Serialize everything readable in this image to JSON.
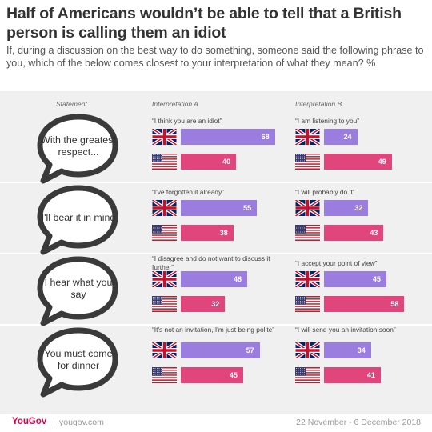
{
  "title": "Half of Americans wouldn’t be able to tell that a British person is calling them an idiot",
  "subtitle": "If, during a discussion on the best way to do something, someone said the following phrase to you, which of the below comes closest to your interpretation of what they mean? %",
  "column_headers": {
    "statement": "Statement",
    "interp_a": "Interpretation A",
    "interp_b": "Interpretation B"
  },
  "colors": {
    "uk": "#9b7ddf",
    "us": "#e0457b",
    "panel": "#f0f0f0",
    "brand": "#e4004b"
  },
  "chart_data": {
    "type": "bar",
    "title": "Half of Americans wouldn’t be able to tell that a British person is calling them an idiot",
    "subtitle": "If, during a discussion on the best way to do something, someone said the following phrase to you, which of the below comes closest to your interpretation of what they mean? %",
    "series": [
      {
        "name": "",
        "flag": "uk-flag-icon",
        "color": "#9b7ddf"
      },
      {
        "name": "",
        "flag": "us-flag-icon",
        "color": "#e0457b"
      }
    ],
    "xlim": [
      0,
      100
    ],
    "rows": [
      {
        "statement": "With the greatest respect...",
        "interp_a": {
          "label": "“I think you are an idiot”",
          "uk": 68,
          "us": 40
        },
        "interp_b": {
          "label": "“I am listening to you”",
          "uk": 24,
          "us": 49
        }
      },
      {
        "statement": "I'll bear it in mind",
        "interp_a": {
          "label": "“I've forgotten it already”",
          "uk": 55,
          "us": 38
        },
        "interp_b": {
          "label": "“I will probably do it”",
          "uk": 32,
          "us": 43
        }
      },
      {
        "statement": "I hear what you say",
        "interp_a": {
          "label": "“I disagree and do not want to discuss it further”",
          "uk": 48,
          "us": 32
        },
        "interp_b": {
          "label": "“I accept your point of view”",
          "uk": 45,
          "us": 58
        }
      },
      {
        "statement": "You must come for dinner",
        "interp_a": {
          "label": "“It's not an invitation, I'm just being polite”",
          "uk": 57,
          "us": 45
        },
        "interp_b": {
          "label": "“I will send you an invitation soon”",
          "uk": 34,
          "us": 41
        }
      }
    ]
  },
  "footer": {
    "brand": "YouGov",
    "url": "yougov.com",
    "date": "22 November - 6 December 2018"
  }
}
